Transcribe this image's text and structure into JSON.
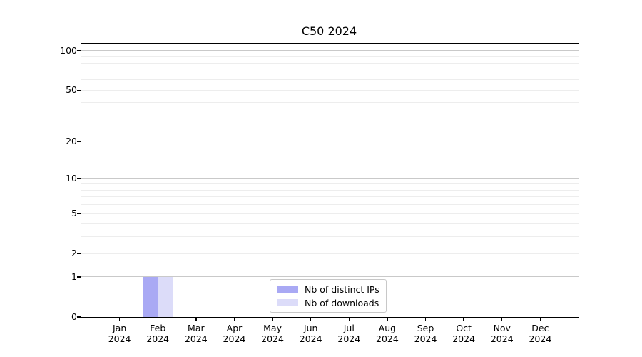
{
  "figure": {
    "background": "#ffffff"
  },
  "chart_data": {
    "type": "bar",
    "title": "C50 2024",
    "categories": [
      "Jan 2024",
      "Feb 2024",
      "Mar 2024",
      "Apr 2024",
      "May 2024",
      "Jun 2024",
      "Jul 2024",
      "Aug 2024",
      "Sep 2024",
      "Oct 2024",
      "Nov 2024",
      "Dec 2024"
    ],
    "series": [
      {
        "name": "Nb of distinct IPs",
        "color": "#a9a9f4",
        "values": [
          0,
          1,
          0,
          0,
          0,
          0,
          0,
          0,
          0,
          0,
          0,
          0
        ]
      },
      {
        "name": "Nb of downloads",
        "color": "#dcdcf9",
        "values": [
          0,
          1,
          0,
          0,
          0,
          0,
          0,
          0,
          0,
          0,
          0,
          0
        ]
      }
    ],
    "xlabel": "",
    "ylabel": "",
    "y_axis": {
      "scale": "log1p",
      "ylim": [
        0,
        113.3
      ],
      "ticks": [
        100,
        50,
        20,
        10,
        5,
        2,
        1,
        0
      ],
      "major_gridlines": [
        1,
        10,
        100
      ],
      "minor_gridlines": [
        2,
        3,
        4,
        5,
        6,
        7,
        8,
        9,
        20,
        30,
        40,
        50,
        60,
        70,
        80,
        90
      ]
    },
    "legend": {
      "position": "bottom-center"
    },
    "grid": true,
    "bar_width_fraction": 0.4
  },
  "colors": {
    "axis": "#000000",
    "text": "#000000",
    "major_grid": "#c9c9c9",
    "minor_grid": "#ededed"
  }
}
